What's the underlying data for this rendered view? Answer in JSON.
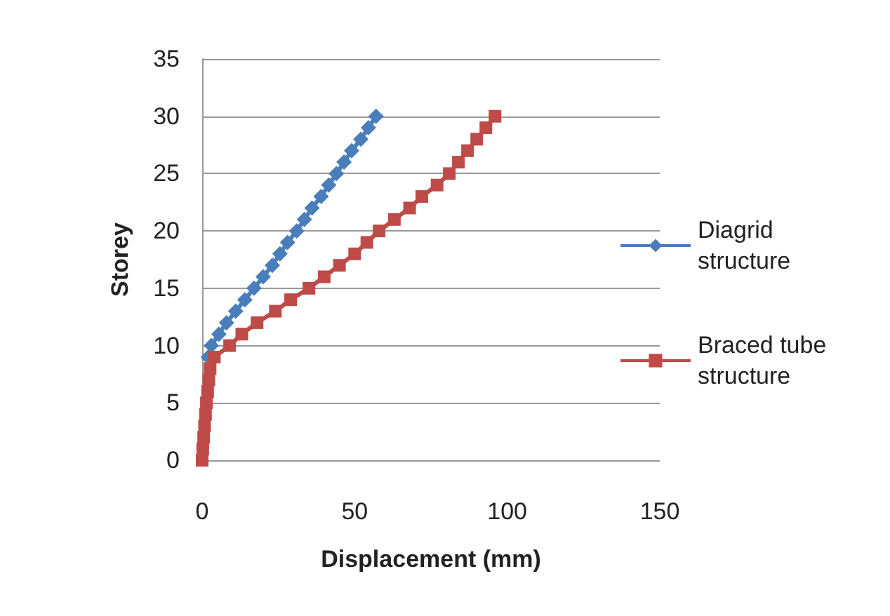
{
  "chart_data": {
    "type": "line",
    "xlabel": "Displacement (mm)",
    "ylabel": "Storey",
    "xlim": [
      0,
      150
    ],
    "xticks": [
      0,
      50,
      100,
      150
    ],
    "ylim": [
      0,
      35
    ],
    "yticks": [
      0,
      5,
      10,
      15,
      20,
      25,
      30,
      35
    ],
    "grid": "y",
    "legend": "right",
    "series": [
      {
        "name": "Diagrid structure",
        "color": "#4a7ebb",
        "marker": "diamond",
        "x": [
          2,
          3,
          5.5,
          8,
          11,
          14,
          17,
          20,
          23,
          25.5,
          28,
          31,
          33.5,
          36,
          39,
          41.5,
          44,
          46.5,
          49,
          52,
          54.5,
          57
        ],
        "values": [
          9,
          10,
          11,
          12,
          13,
          14,
          15,
          16,
          17,
          18,
          19,
          20,
          21,
          22,
          23,
          24,
          25,
          26,
          27,
          28,
          29,
          30
        ]
      },
      {
        "name": "Braced tube structure",
        "color": "#be4b48",
        "marker": "square",
        "x": [
          0,
          0.2,
          0.5,
          0.8,
          1.1,
          1.4,
          1.8,
          2.2,
          2.6,
          4,
          9,
          13,
          18,
          24,
          29,
          35,
          40,
          45,
          50,
          54,
          58,
          63,
          68,
          72,
          77,
          81,
          84,
          87,
          90,
          93,
          96
        ],
        "values": [
          0,
          1,
          2,
          3,
          4,
          5,
          6,
          7,
          8,
          9,
          10,
          11,
          12,
          13,
          14,
          15,
          16,
          17,
          18,
          19,
          20,
          21,
          22,
          23,
          24,
          25,
          26,
          27,
          28,
          29,
          30
        ]
      }
    ]
  }
}
